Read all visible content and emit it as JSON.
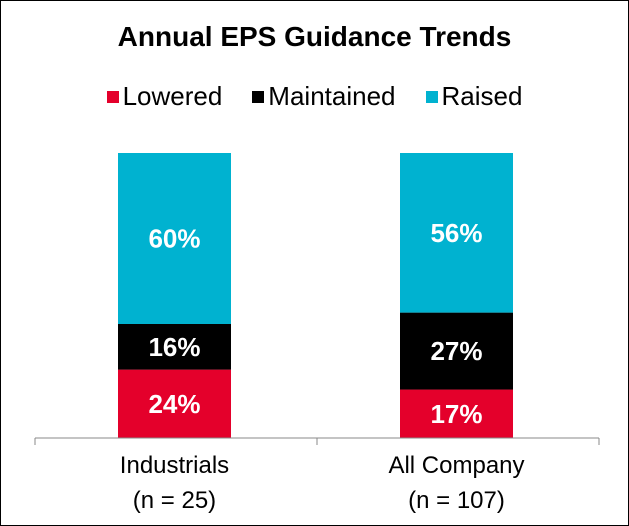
{
  "chart_data": {
    "type": "bar",
    "stacked": true,
    "title": "Annual EPS Guidance Trends",
    "categories": [
      "Industrials",
      "All Company"
    ],
    "category_notes": [
      "(n = 25)",
      "(n = 107)"
    ],
    "series": [
      {
        "name": "Lowered",
        "color": "#e4002b",
        "values": [
          24,
          17
        ]
      },
      {
        "name": "Maintained",
        "color": "#000000",
        "values": [
          16,
          27
        ]
      },
      {
        "name": "Raised",
        "color": "#00b2d0",
        "values": [
          60,
          56
        ]
      }
    ],
    "data_labels": [
      [
        "24%",
        "17%"
      ],
      [
        "16%",
        "27%"
      ],
      [
        "60%",
        "56%"
      ]
    ],
    "ylim": [
      0,
      100
    ],
    "legend_position": "top",
    "grid": false
  }
}
